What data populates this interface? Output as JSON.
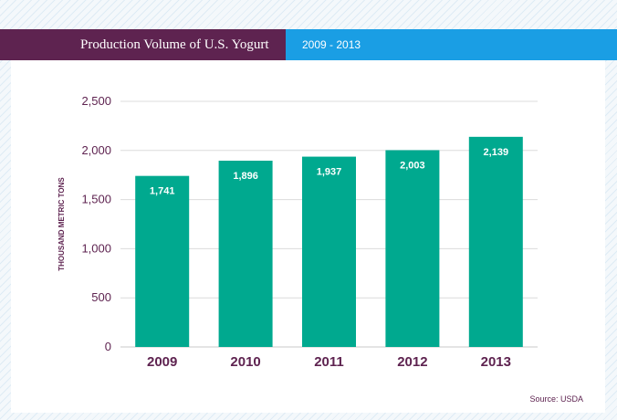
{
  "header": {
    "title": "Production Volume of U.S. Yogurt",
    "date_range": "2009 - 2013"
  },
  "colors": {
    "title_bar": "#5e2350",
    "range_bar": "#1a9ee4",
    "bar": "#00a98f",
    "axis_text": "#5e2350",
    "grid": "#dcdcdc"
  },
  "chart_data": {
    "type": "bar",
    "title": "Production Volume of U.S. Yogurt",
    "subtitle": "2009 - 2013",
    "categories": [
      "2009",
      "2010",
      "2011",
      "2012",
      "2013"
    ],
    "values": [
      1741,
      1896,
      1937,
      2003,
      2139
    ],
    "value_labels": [
      "1,741",
      "1,896",
      "1,937",
      "2,003",
      "2,139"
    ],
    "ylabel": "THOUSAND METRIC TONS",
    "xlabel": "",
    "ylim": [
      0,
      2500
    ],
    "yticks": [
      0,
      500,
      1000,
      1500,
      2000,
      2500
    ],
    "ytick_labels": [
      "0",
      "500",
      "1,000",
      "1,500",
      "2,000",
      "2,500"
    ],
    "grid": true,
    "legend": "none"
  },
  "source": "Source: USDA"
}
